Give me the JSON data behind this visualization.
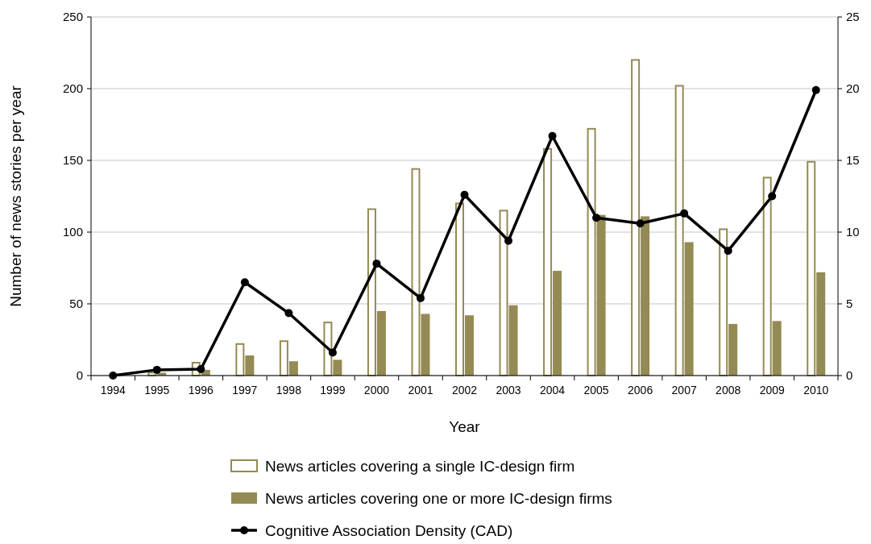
{
  "chart_data": {
    "type": "bar",
    "xlabel": "Year",
    "ylabel": "Number of news stories per year",
    "categories": [
      "1994",
      "1995",
      "1996",
      "1997",
      "1998",
      "1999",
      "2000",
      "2001",
      "2002",
      "2003",
      "2004",
      "2005",
      "2006",
      "2007",
      "2008",
      "2009",
      "2010"
    ],
    "series": [
      {
        "name": "News articles covering a single IC-design firm",
        "color": "#ffffff",
        "values": [
          0,
          2,
          9,
          22,
          24,
          37,
          116,
          144,
          120,
          115,
          158,
          172,
          220,
          202,
          102,
          138,
          149
        ]
      },
      {
        "name": "News articles covering one or more IC-design firms",
        "color": "#948a54",
        "values": [
          0,
          2,
          4,
          14,
          10,
          11,
          45,
          43,
          42,
          49,
          73,
          112,
          111,
          93,
          36,
          38,
          72
        ]
      },
      {
        "name": "Cognitive Association Density (CAD)",
        "type": "line",
        "axis": "y2",
        "color": "#000000",
        "marker": "circle",
        "values": [
          0,
          0.4,
          0.45,
          6.5,
          4.35,
          1.6,
          7.8,
          5.4,
          12.6,
          9.4,
          16.7,
          11.0,
          10.6,
          11.3,
          8.7,
          12.5,
          19.9
        ]
      }
    ],
    "ylim": [
      0,
      250
    ],
    "yticks": [
      0,
      50,
      100,
      150,
      200,
      250
    ],
    "y2lim": [
      0,
      25
    ],
    "y2ticks": [
      0,
      5,
      10,
      15,
      20,
      25
    ],
    "grid": "y",
    "legend": "bottom"
  }
}
